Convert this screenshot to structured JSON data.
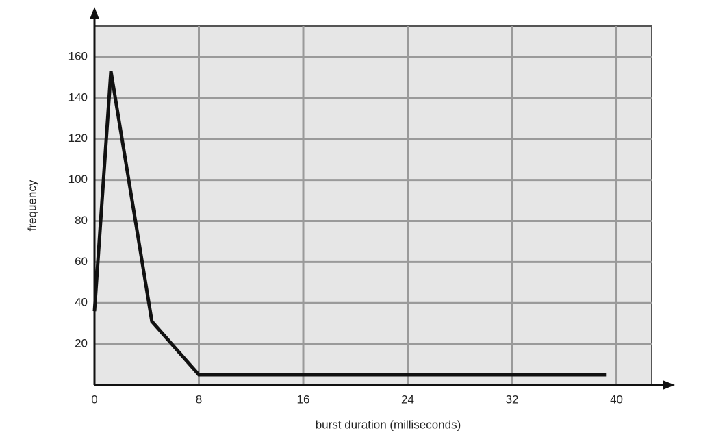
{
  "chart_data": {
    "type": "line",
    "x_label": "burst duration (milliseconds)",
    "y_label": "frequency",
    "x": [
      0,
      1.26,
      4.4,
      8,
      39.2
    ],
    "values": [
      36,
      153,
      31,
      5,
      5
    ],
    "color": "#111111",
    "xlim": [
      0,
      42.7
    ],
    "ylim": [
      0,
      175
    ],
    "xticks": [
      0,
      8,
      16,
      24,
      32,
      40
    ],
    "yticks": [
      20,
      40,
      60,
      80,
      100,
      120,
      140,
      160
    ],
    "grid": true
  }
}
